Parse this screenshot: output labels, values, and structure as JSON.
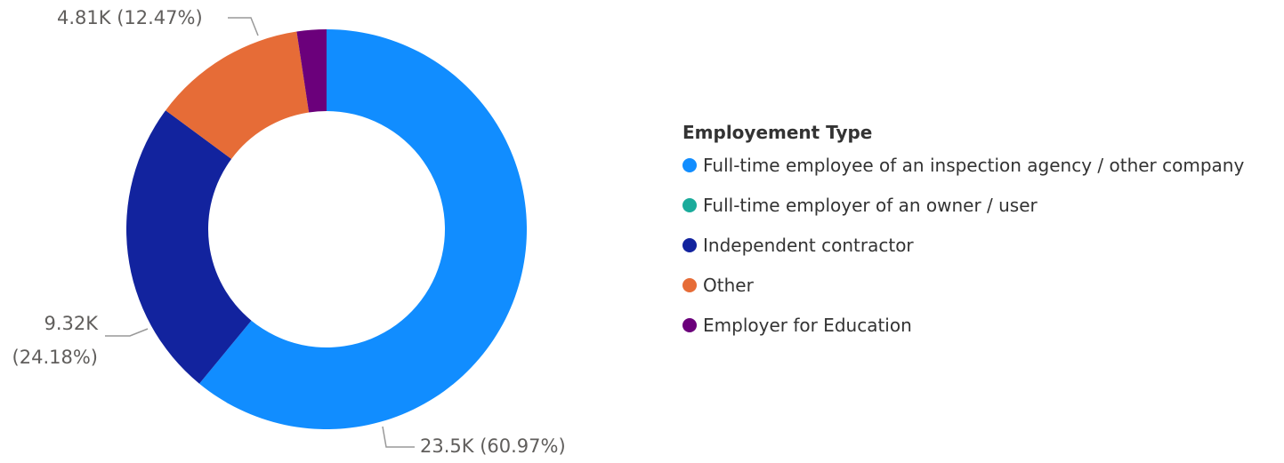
{
  "chart_data": {
    "type": "donut",
    "legend_title": "Employement Type",
    "categories": [
      "Full-time employee of an inspection agency / other company",
      "Full-time employer of an owner / user",
      "Independent contractor",
      "Other",
      "Employer for Education"
    ],
    "values": [
      23500,
      0,
      9320,
      4810,
      920
    ],
    "value_labels": [
      "23.5K (60.97%)",
      null,
      "9.32K (24.18%)",
      "4.81K (12.47%)",
      null
    ],
    "colors": [
      "#118dff",
      "#1aab9b",
      "#12239e",
      "#e66c37",
      "#6b007b"
    ],
    "legend_position": "right"
  }
}
